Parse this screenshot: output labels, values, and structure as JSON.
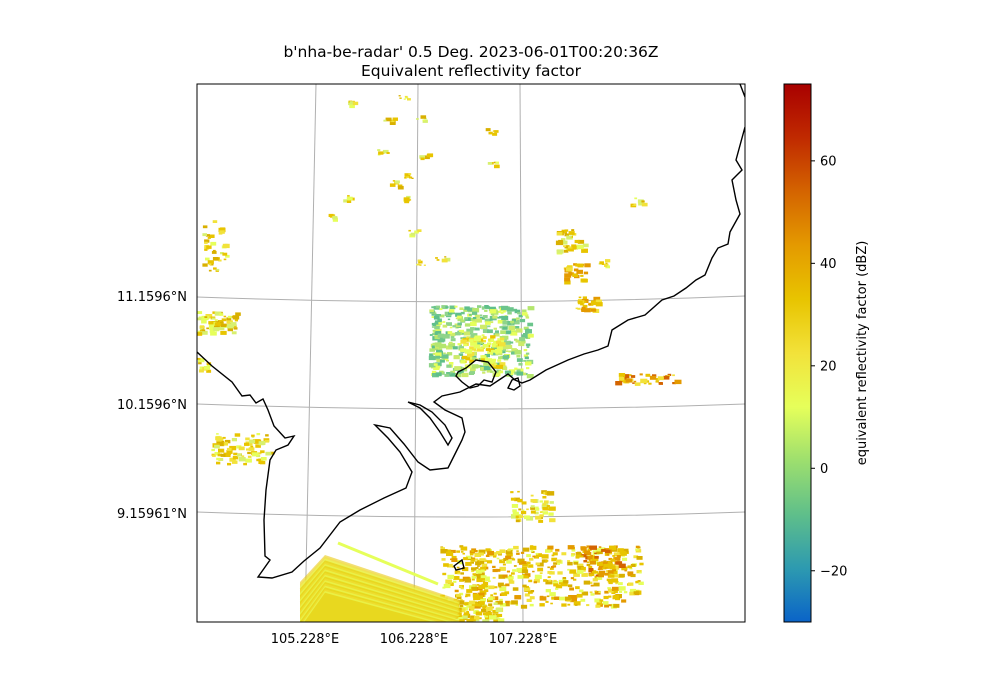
{
  "title": "b'nha-be-radar' 0.5 Deg. 2023-06-01T00:20:36Z",
  "subtitle": "Equivalent reflectivity factor",
  "lat_labels": [
    "11.1596°N",
    "10.1596°N",
    "9.15961°N"
  ],
  "lon_labels": [
    "105.228°E",
    "106.228°E",
    "107.228°E"
  ],
  "colorbar": {
    "label": "equivalent reflectivity factor (dBZ)",
    "ticks": [
      "60",
      "40",
      "20",
      "0",
      "−20"
    ],
    "min": -30,
    "max": 75,
    "colormap": "HomeyerRainbow",
    "colors": [
      "#0a64c8",
      "#2d9ab0",
      "#5fbf8a",
      "#9ddf6e",
      "#e6ff5a",
      "#f2e23a",
      "#e8c400",
      "#e49a00",
      "#d46400",
      "#c02a00",
      "#a80000"
    ]
  },
  "map": {
    "coastline_color": "#000000",
    "gridline_color": "#b0b0b0"
  }
}
